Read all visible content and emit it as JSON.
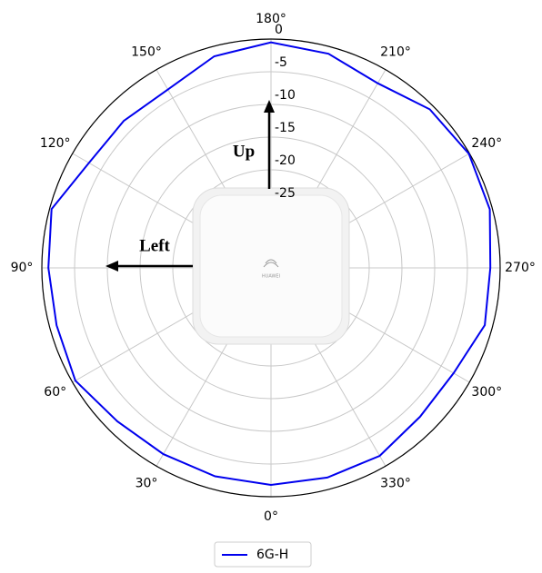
{
  "chart_data": {
    "type": "polar",
    "x": [
      0,
      15,
      30,
      45,
      60,
      75,
      90,
      105,
      120,
      135,
      150,
      165,
      180,
      195,
      210,
      225,
      240,
      255,
      270,
      285,
      300,
      315,
      330,
      345
    ],
    "series": [
      {
        "name": "6G-H",
        "color": "#0000ee",
        "values": [
          -1.8,
          -2,
          -2.1,
          -1.8,
          -0.5,
          -1.1,
          -1,
          -0.3,
          -2.9,
          -3.2,
          -3.5,
          -1.5,
          -0.5,
          -1.1,
          -2.4,
          -0.7,
          -0.1,
          -0.4,
          -1.5,
          -1.2,
          -2.8,
          -2.8,
          -1.8,
          -1.8
        ]
      }
    ],
    "ylim": [
      -35,
      0
    ],
    "yticks": [
      -25,
      -20,
      -15,
      -10,
      -5,
      0
    ],
    "xticks": [
      {
        "value": 0,
        "label": "0°"
      },
      {
        "value": 30,
        "label": "30°"
      },
      {
        "value": 60,
        "label": "60°"
      },
      {
        "value": 90,
        "label": "90°"
      },
      {
        "value": 120,
        "label": "120°"
      },
      {
        "value": 150,
        "label": "150°"
      },
      {
        "value": 180,
        "label": "180°"
      },
      {
        "value": 210,
        "label": "210°"
      },
      {
        "value": 240,
        "label": "240°"
      },
      {
        "value": 270,
        "label": "270°"
      },
      {
        "value": 300,
        "label": "300°"
      },
      {
        "value": 330,
        "label": "330°"
      }
    ],
    "grid": true,
    "annotations": [
      "Up",
      "Left",
      "HUAWEI"
    ],
    "legend": "bottom"
  }
}
